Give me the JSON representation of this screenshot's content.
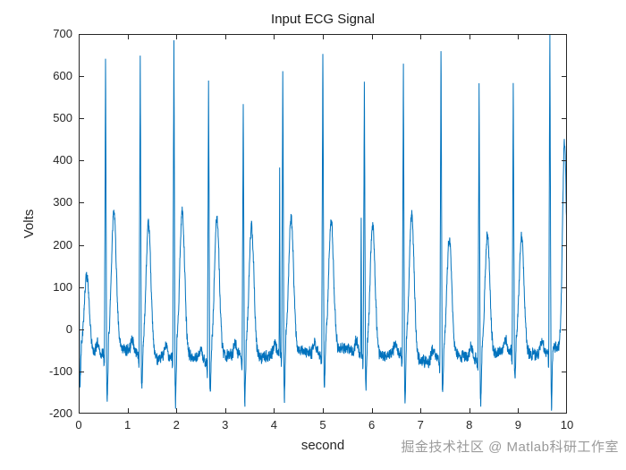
{
  "figure": {
    "watermark": "掘金技术社区 @ Matlab科研工作室"
  },
  "chart_data": {
    "type": "line",
    "title": "Input ECG Signal",
    "xlabel": "second",
    "ylabel": "Volts",
    "xlim": [
      0,
      10
    ],
    "ylim": [
      -200,
      700
    ],
    "xticks": [
      0,
      1,
      2,
      3,
      4,
      5,
      6,
      7,
      8,
      9,
      10
    ],
    "yticks": [
      -200,
      -100,
      0,
      100,
      200,
      300,
      400,
      500,
      600,
      700
    ],
    "grid": false,
    "legend": null,
    "line_color": "#0072BD",
    "axis_color": "#262626",
    "background": "#ffffff",
    "signal": {
      "description": "Noisy ECG trace, ~13 heartbeats over 10 s, baseline ~ -60 V",
      "baseline_volts": -60,
      "noise_amp": 16,
      "wander": [
        {
          "amp": 9,
          "freq": 0.21
        },
        {
          "amp": 7,
          "freq": 0.9
        }
      ],
      "beats": [
        {
          "t": -0.005,
          "r": 460,
          "s": -150,
          "tw": 120
        },
        {
          "t": 0.55,
          "r": 630,
          "s": -190,
          "tw": 275
        },
        {
          "t": 1.26,
          "r": 650,
          "s": -155,
          "tw": 253
        },
        {
          "t": 1.95,
          "r": 685,
          "s": -185,
          "tw": 282
        },
        {
          "t": 2.66,
          "r": 600,
          "s": -150,
          "tw": 278
        },
        {
          "t": 3.37,
          "r": 545,
          "s": -190,
          "tw": 252
        },
        {
          "t": 4.18,
          "r": 610,
          "s": -195,
          "tw": 250,
          "pre": 375
        },
        {
          "t": 5.0,
          "r": 655,
          "s": -150,
          "tw": 250
        },
        {
          "t": 5.85,
          "r": 580,
          "s": -150,
          "tw": 255,
          "pre": 258
        },
        {
          "t": 6.65,
          "r": 625,
          "s": -185,
          "tw": 280
        },
        {
          "t": 7.42,
          "r": 660,
          "s": -150,
          "tw": 215
        },
        {
          "t": 8.2,
          "r": 580,
          "s": -185,
          "tw": 230
        },
        {
          "t": 8.9,
          "r": 580,
          "s": -140,
          "tw": 215
        },
        {
          "t": 9.65,
          "r": 700,
          "s": -195,
          "tw": 430,
          "toff": 0.3,
          "tww": 0.04
        }
      ]
    }
  }
}
